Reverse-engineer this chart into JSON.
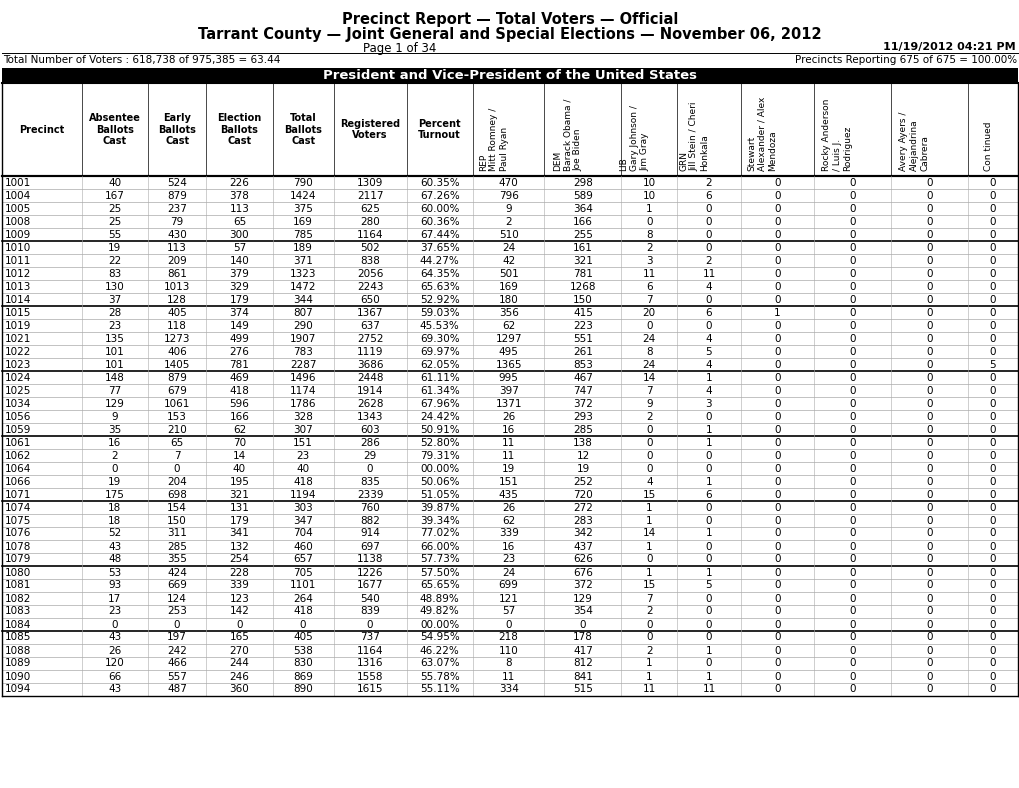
{
  "title1": "Precinct Report — Total Voters — Official",
  "title2": "Tarrant County — Joint General and Special Elections — November 06, 2012",
  "page_info": "Page 1 of 34",
  "date_info": "11/19/2012 04:21 PM",
  "total_voters": "Total Number of Voters : 618,738 of 975,385 = 63.44",
  "precincts_reporting": "Precincts Reporting 675 of 675 = 100.00%",
  "section_title": "President and Vice-President of the United States",
  "col_headers_straight": [
    "Precinct",
    "Absentee\nBallots\nCast",
    "Early\nBallots\nCast",
    "Election\nBallots\nCast",
    "Total\nBallots\nCast",
    "Registered\nVoters",
    "Percent\nTurnout"
  ],
  "col_headers_rotated": [
    "REP\nMitt Romney /\nPaul Ryan",
    "DEM\nBarack Obama /\nJoe Biden",
    "LIB\nGary Johnson /\nJim Gray",
    "GRN\nJill Stein / Cheri\nHonkala",
    "Stewart\nAlexander / Alex\nMendoza",
    "Rocky Anderson\n/ Luis J.\nRodriguez",
    "Avery Ayers /\nAlejandrina\nCabrera",
    "Con tinued"
  ],
  "rows": [
    [
      "1001",
      "40",
      "524",
      "226",
      "790",
      "1309",
      "60.35%",
      "470",
      "298",
      "10",
      "2",
      "0",
      "0",
      "0",
      "0"
    ],
    [
      "1004",
      "167",
      "879",
      "378",
      "1424",
      "2117",
      "67.26%",
      "796",
      "589",
      "10",
      "6",
      "0",
      "0",
      "0",
      "0"
    ],
    [
      "1005",
      "25",
      "237",
      "113",
      "375",
      "625",
      "60.00%",
      "9",
      "364",
      "1",
      "0",
      "0",
      "0",
      "0",
      "0"
    ],
    [
      "1008",
      "25",
      "79",
      "65",
      "169",
      "280",
      "60.36%",
      "2",
      "166",
      "0",
      "0",
      "0",
      "0",
      "0",
      "0"
    ],
    [
      "1009",
      "55",
      "430",
      "300",
      "785",
      "1164",
      "67.44%",
      "510",
      "255",
      "8",
      "0",
      "0",
      "0",
      "0",
      "0"
    ],
    [
      "1010",
      "19",
      "113",
      "57",
      "189",
      "502",
      "37.65%",
      "24",
      "161",
      "2",
      "0",
      "0",
      "0",
      "0",
      "0"
    ],
    [
      "1011",
      "22",
      "209",
      "140",
      "371",
      "838",
      "44.27%",
      "42",
      "321",
      "3",
      "2",
      "0",
      "0",
      "0",
      "0"
    ],
    [
      "1012",
      "83",
      "861",
      "379",
      "1323",
      "2056",
      "64.35%",
      "501",
      "781",
      "11",
      "11",
      "0",
      "0",
      "0",
      "0"
    ],
    [
      "1013",
      "130",
      "1013",
      "329",
      "1472",
      "2243",
      "65.63%",
      "169",
      "1268",
      "6",
      "4",
      "0",
      "0",
      "0",
      "0"
    ],
    [
      "1014",
      "37",
      "128",
      "179",
      "344",
      "650",
      "52.92%",
      "180",
      "150",
      "7",
      "0",
      "0",
      "0",
      "0",
      "0"
    ],
    [
      "1015",
      "28",
      "405",
      "374",
      "807",
      "1367",
      "59.03%",
      "356",
      "415",
      "20",
      "6",
      "1",
      "0",
      "0",
      "0"
    ],
    [
      "1019",
      "23",
      "118",
      "149",
      "290",
      "637",
      "45.53%",
      "62",
      "223",
      "0",
      "0",
      "0",
      "0",
      "0",
      "0"
    ],
    [
      "1021",
      "135",
      "1273",
      "499",
      "1907",
      "2752",
      "69.30%",
      "1297",
      "551",
      "24",
      "4",
      "0",
      "0",
      "0",
      "0"
    ],
    [
      "1022",
      "101",
      "406",
      "276",
      "783",
      "1119",
      "69.97%",
      "495",
      "261",
      "8",
      "5",
      "0",
      "0",
      "0",
      "0"
    ],
    [
      "1023",
      "101",
      "1405",
      "781",
      "2287",
      "3686",
      "62.05%",
      "1365",
      "853",
      "24",
      "4",
      "0",
      "0",
      "0",
      "5"
    ],
    [
      "1024",
      "148",
      "879",
      "469",
      "1496",
      "2448",
      "61.11%",
      "995",
      "467",
      "14",
      "1",
      "0",
      "0",
      "0",
      "0"
    ],
    [
      "1025",
      "77",
      "679",
      "418",
      "1174",
      "1914",
      "61.34%",
      "397",
      "747",
      "7",
      "4",
      "0",
      "0",
      "0",
      "0"
    ],
    [
      "1034",
      "129",
      "1061",
      "596",
      "1786",
      "2628",
      "67.96%",
      "1371",
      "372",
      "9",
      "3",
      "0",
      "0",
      "0",
      "0"
    ],
    [
      "1056",
      "9",
      "153",
      "166",
      "328",
      "1343",
      "24.42%",
      "26",
      "293",
      "2",
      "0",
      "0",
      "0",
      "0",
      "0"
    ],
    [
      "1059",
      "35",
      "210",
      "62",
      "307",
      "603",
      "50.91%",
      "16",
      "285",
      "0",
      "1",
      "0",
      "0",
      "0",
      "0"
    ],
    [
      "1061",
      "16",
      "65",
      "70",
      "151",
      "286",
      "52.80%",
      "11",
      "138",
      "0",
      "1",
      "0",
      "0",
      "0",
      "0"
    ],
    [
      "1062",
      "2",
      "7",
      "14",
      "23",
      "29",
      "79.31%",
      "11",
      "12",
      "0",
      "0",
      "0",
      "0",
      "0",
      "0"
    ],
    [
      "1064",
      "0",
      "0",
      "40",
      "40",
      "0",
      "00.00%",
      "19",
      "19",
      "0",
      "0",
      "0",
      "0",
      "0",
      "0"
    ],
    [
      "1066",
      "19",
      "204",
      "195",
      "418",
      "835",
      "50.06%",
      "151",
      "252",
      "4",
      "1",
      "0",
      "0",
      "0",
      "0"
    ],
    [
      "1071",
      "175",
      "698",
      "321",
      "1194",
      "2339",
      "51.05%",
      "435",
      "720",
      "15",
      "6",
      "0",
      "0",
      "0",
      "0"
    ],
    [
      "1074",
      "18",
      "154",
      "131",
      "303",
      "760",
      "39.87%",
      "26",
      "272",
      "1",
      "0",
      "0",
      "0",
      "0",
      "0"
    ],
    [
      "1075",
      "18",
      "150",
      "179",
      "347",
      "882",
      "39.34%",
      "62",
      "283",
      "1",
      "0",
      "0",
      "0",
      "0",
      "0"
    ],
    [
      "1076",
      "52",
      "311",
      "341",
      "704",
      "914",
      "77.02%",
      "339",
      "342",
      "14",
      "1",
      "0",
      "0",
      "0",
      "0"
    ],
    [
      "1078",
      "43",
      "285",
      "132",
      "460",
      "697",
      "66.00%",
      "16",
      "437",
      "1",
      "0",
      "0",
      "0",
      "0",
      "0"
    ],
    [
      "1079",
      "48",
      "355",
      "254",
      "657",
      "1138",
      "57.73%",
      "23",
      "626",
      "0",
      "0",
      "0",
      "0",
      "0",
      "0"
    ],
    [
      "1080",
      "53",
      "424",
      "228",
      "705",
      "1226",
      "57.50%",
      "24",
      "676",
      "1",
      "1",
      "0",
      "0",
      "0",
      "0"
    ],
    [
      "1081",
      "93",
      "669",
      "339",
      "1101",
      "1677",
      "65.65%",
      "699",
      "372",
      "15",
      "5",
      "0",
      "0",
      "0",
      "0"
    ],
    [
      "1082",
      "17",
      "124",
      "123",
      "264",
      "540",
      "48.89%",
      "121",
      "129",
      "7",
      "0",
      "0",
      "0",
      "0",
      "0"
    ],
    [
      "1083",
      "23",
      "253",
      "142",
      "418",
      "839",
      "49.82%",
      "57",
      "354",
      "2",
      "0",
      "0",
      "0",
      "0",
      "0"
    ],
    [
      "1084",
      "0",
      "0",
      "0",
      "0",
      "0",
      "00.00%",
      "0",
      "0",
      "0",
      "0",
      "0",
      "0",
      "0",
      "0"
    ],
    [
      "1085",
      "43",
      "197",
      "165",
      "405",
      "737",
      "54.95%",
      "218",
      "178",
      "0",
      "0",
      "0",
      "0",
      "0",
      "0"
    ],
    [
      "1088",
      "26",
      "242",
      "270",
      "538",
      "1164",
      "46.22%",
      "110",
      "417",
      "2",
      "1",
      "0",
      "0",
      "0",
      "0"
    ],
    [
      "1089",
      "120",
      "466",
      "244",
      "830",
      "1316",
      "63.07%",
      "8",
      "812",
      "1",
      "0",
      "0",
      "0",
      "0",
      "0"
    ],
    [
      "1090",
      "66",
      "557",
      "246",
      "869",
      "1558",
      "55.78%",
      "11",
      "841",
      "1",
      "1",
      "0",
      "0",
      "0",
      "0"
    ],
    [
      "1094",
      "43",
      "487",
      "360",
      "890",
      "1615",
      "55.11%",
      "334",
      "515",
      "11",
      "11",
      "0",
      "0",
      "0",
      "0"
    ]
  ],
  "group_separators": [
    4,
    9,
    14,
    19,
    24,
    29,
    34
  ],
  "bg_color": "#ffffff"
}
